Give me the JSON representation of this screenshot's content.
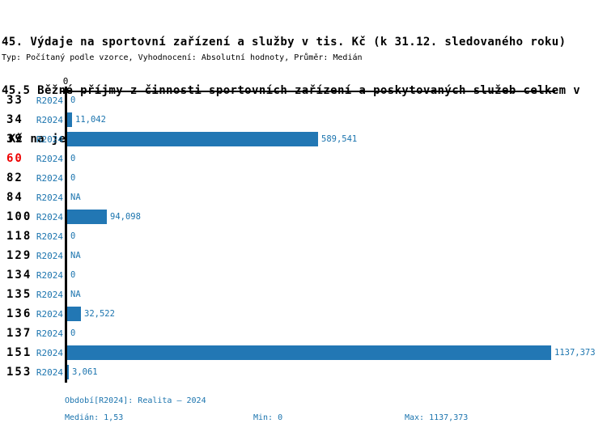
{
  "title": {
    "line1": "45. Výdaje na sportovní zařízení a služby v tis. Kč (k 31.12. sledovaného roku)",
    "line2": "45.5 Běžné příjmy z činnosti sportovních zařízení a poskytovaných služeb celkem v",
    "line3": " Kč na jednoho obyvatele obce",
    "meta": "Typ: Počítaný podle vzorce, Vyhodnocení: Absolutní hodnoty, Průměr: Medián"
  },
  "chart_data": {
    "type": "bar",
    "orientation": "horizontal",
    "title": "45.5 Běžné příjmy z činnosti sportovních zařízení a poskytovaných služeb celkem v Kč na jednoho obyvatele obce",
    "categories": [
      "33",
      "34",
      "39",
      "60",
      "82",
      "84",
      "100",
      "118",
      "129",
      "134",
      "135",
      "136",
      "137",
      "151",
      "153"
    ],
    "series_label": "R2024",
    "values": [
      0,
      11.042,
      589.541,
      0,
      0,
      null,
      94.098,
      0,
      null,
      0,
      null,
      32.522,
      0,
      1137.373,
      3.061
    ],
    "value_labels": [
      "0",
      "11,042",
      "589,541",
      "0",
      "0",
      "NA",
      "94,098",
      "0",
      "NA",
      "0",
      "NA",
      "32,522",
      "0",
      "1137,373",
      "3,061"
    ],
    "highlighted_category": "60",
    "axis": {
      "tick_label": "0",
      "xlim": [
        0,
        1137.373
      ]
    },
    "legend": "none",
    "grid": false,
    "stats": {
      "median": 1.53,
      "min": 0,
      "max": 1137.373
    }
  },
  "footer": {
    "period": "Období[R2024]: Realita – 2024",
    "median": "Medián: 1,53",
    "min": "Min: 0",
    "max": "Max: 1137,373"
  },
  "colors": {
    "bar": "#2277b4",
    "text_blue": "#1b74ae",
    "highlight_red": "#ee0000",
    "axis_black": "#000000"
  }
}
